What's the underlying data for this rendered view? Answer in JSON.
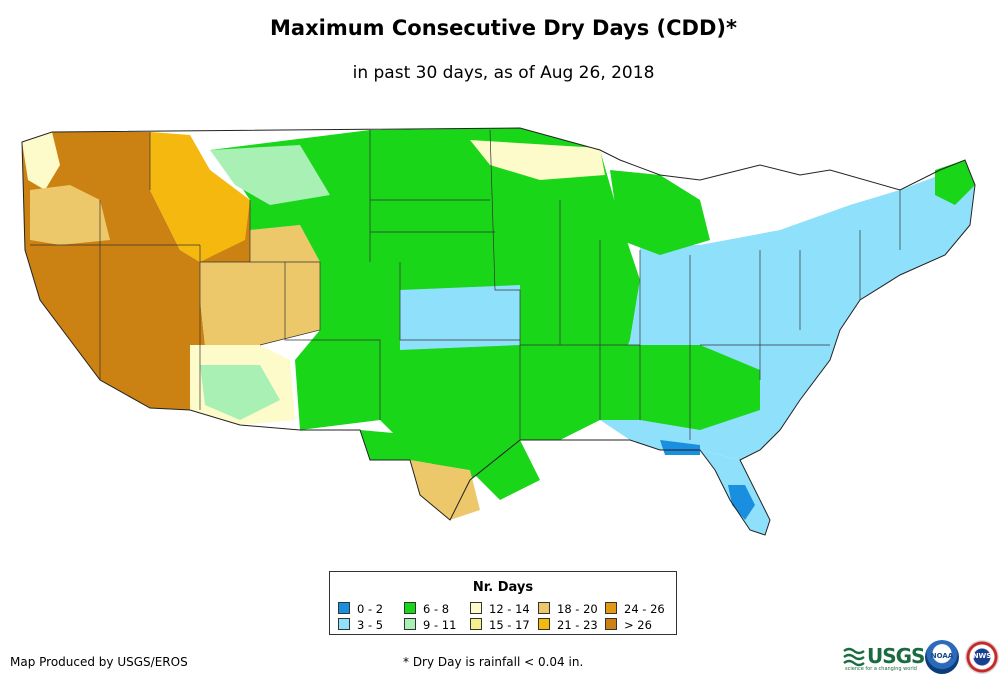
{
  "header": {
    "title": "Maximum Consecutive Dry Days (CDD)*",
    "subtitle": "in past 30 days, as of Aug 26, 2018"
  },
  "legend": {
    "title": "Nr. Days",
    "items": [
      {
        "label": "0 - 2",
        "color": "#1a8fe0"
      },
      {
        "label": "3 - 5",
        "color": "#8fe0fb"
      },
      {
        "label": "6 - 8",
        "color": "#19d619"
      },
      {
        "label": "9 - 11",
        "color": "#a8f0b4"
      },
      {
        "label": "12 - 14",
        "color": "#fdfbc9"
      },
      {
        "label": "15 - 17",
        "color": "#f4ef8c"
      },
      {
        "label": "18 - 20",
        "color": "#ecc86a"
      },
      {
        "label": "21 - 23",
        "color": "#f5b80f"
      },
      {
        "label": "24 - 26",
        "color": "#e39a12"
      },
      {
        "label": "> 26",
        "color": "#cc8212"
      }
    ]
  },
  "footer": {
    "credit": "Map Produced by USGS/EROS",
    "footnote": "* Dry Day is rainfall < 0.04 in.",
    "logos": {
      "usgs": "USGS",
      "usgs_tagline": "science for a changing world",
      "noaa": "NOAA",
      "nws": "NWS"
    }
  }
}
